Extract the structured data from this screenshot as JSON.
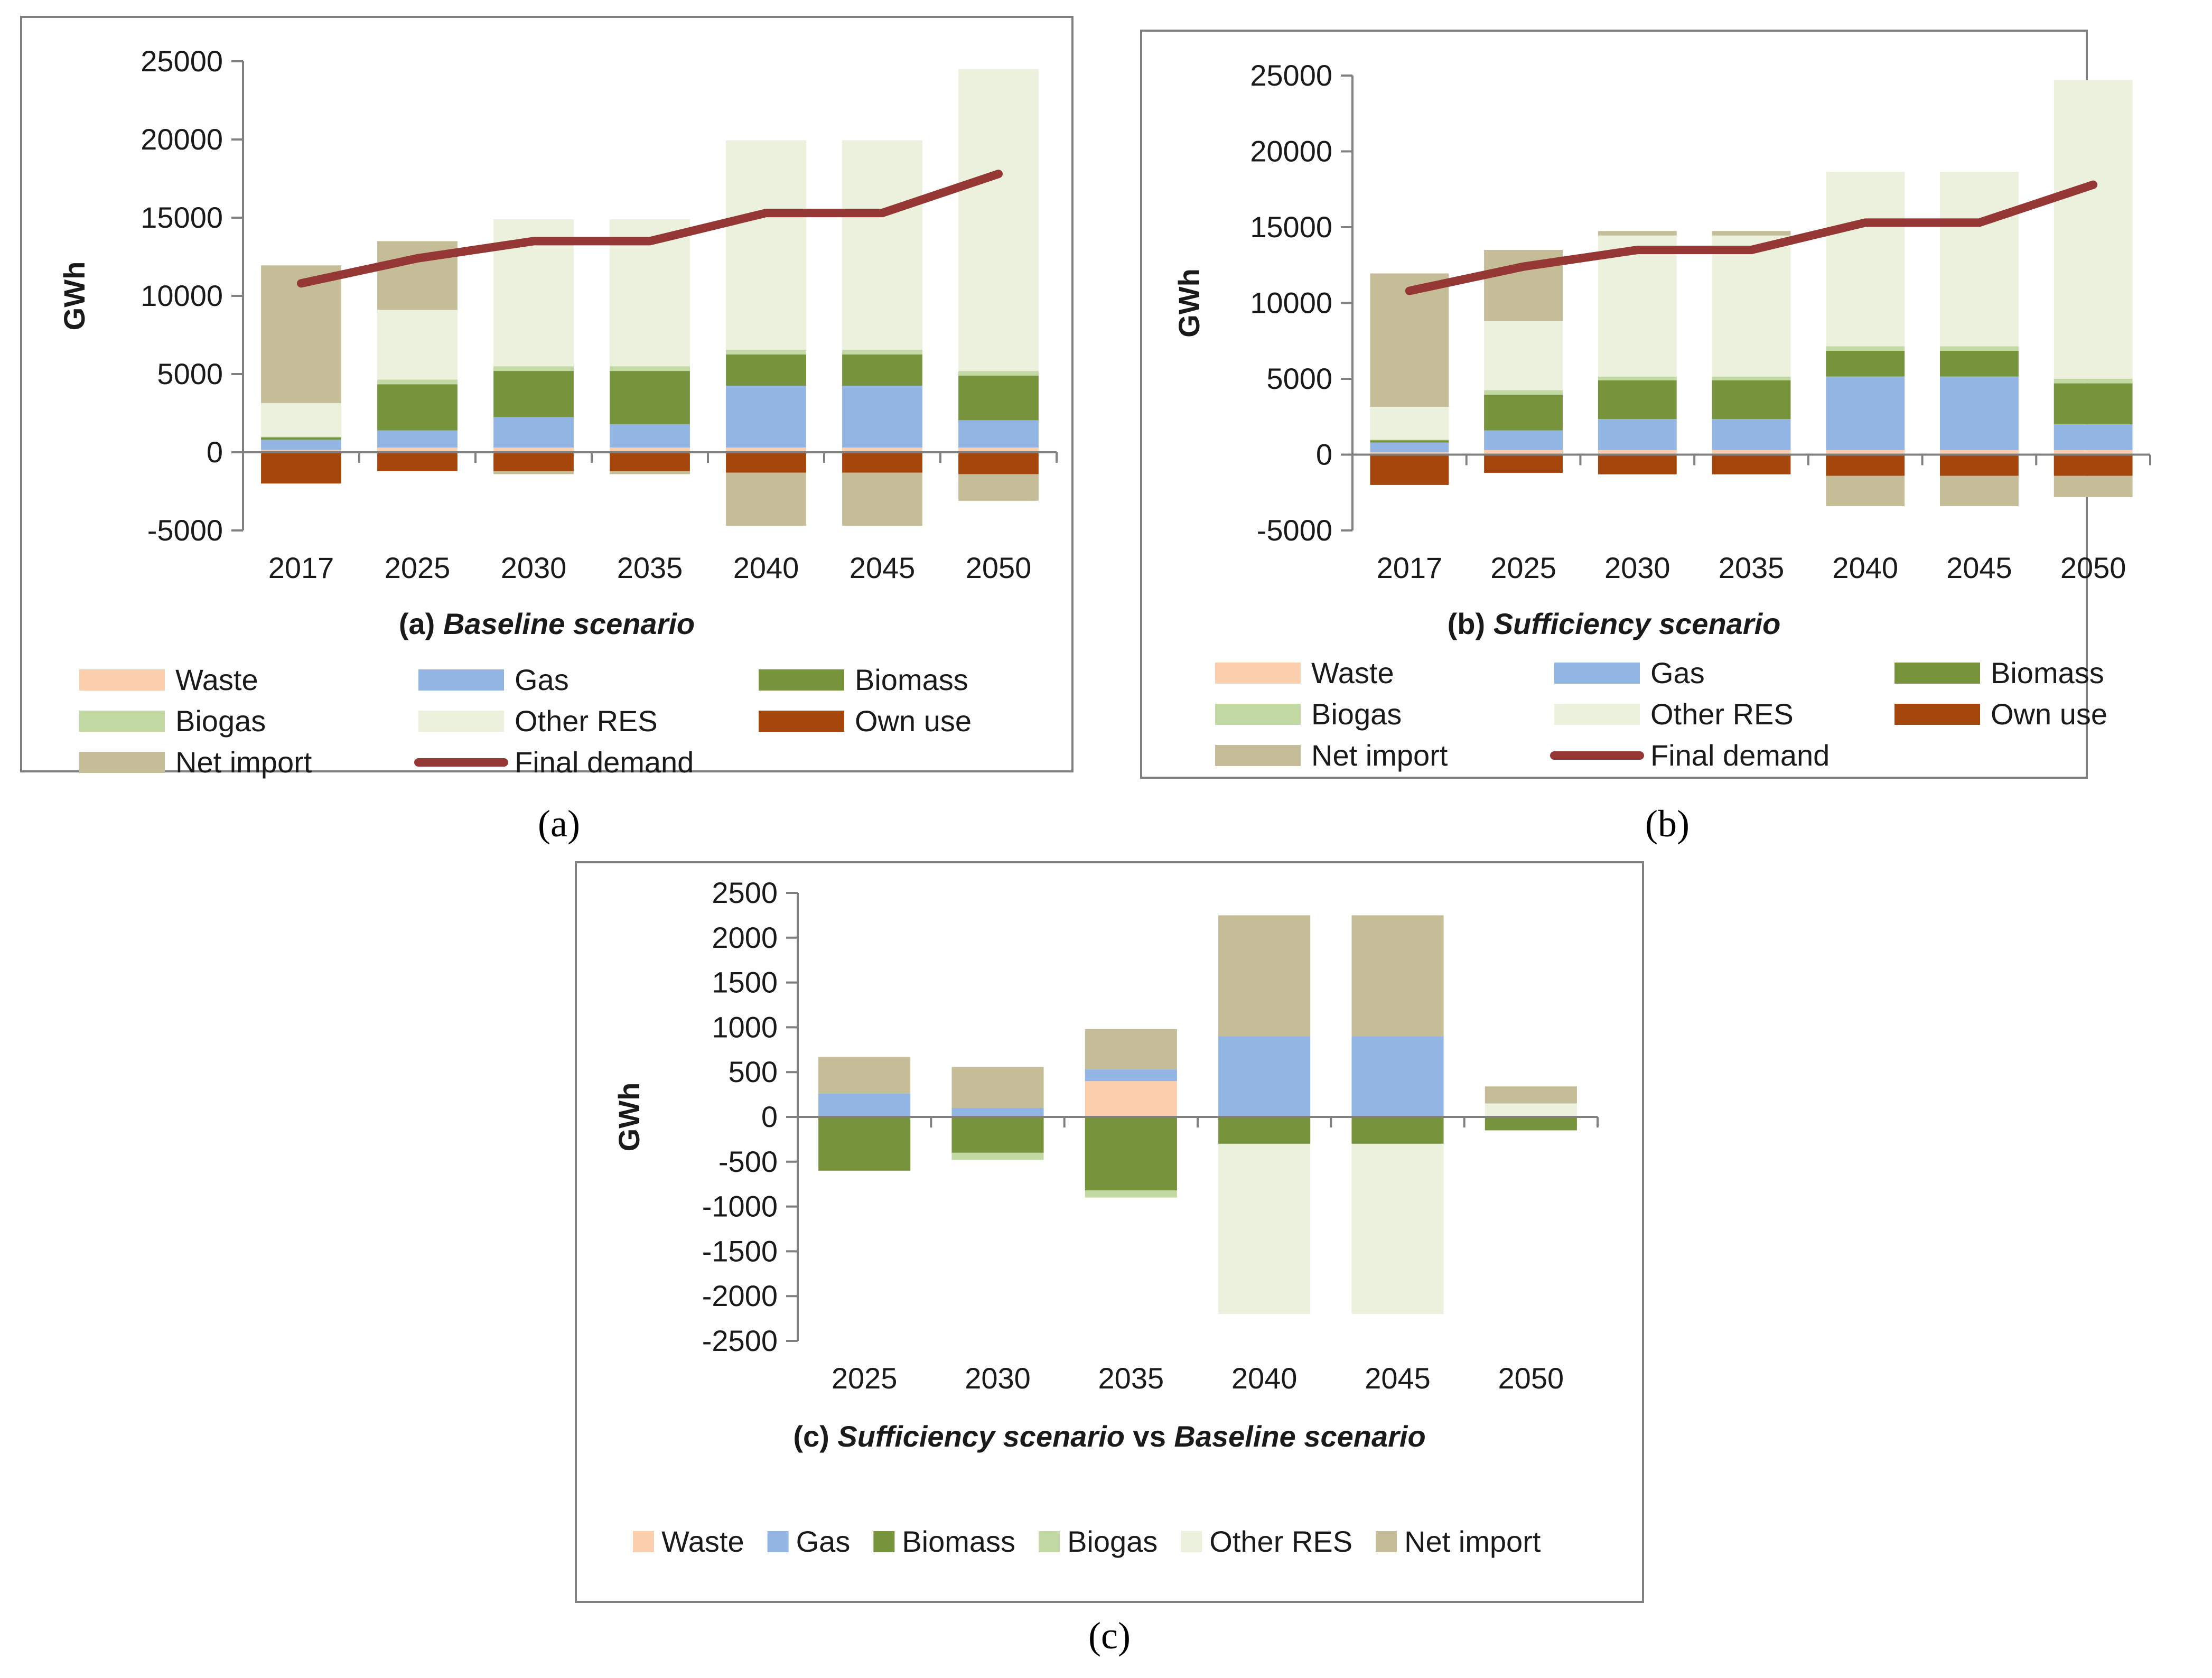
{
  "colors": {
    "Waste": "#fbcfae",
    "Gas": "#92b5e3",
    "Biomass": "#77933c",
    "Biogas": "#c3d9a3",
    "Other RES": "#ebf1dd",
    "Own use": "#a5470c",
    "Net import": "#c4bd97",
    "Final demand": "#953735",
    "frame": "#7f7f7f",
    "axis": "#808080"
  },
  "chart_data": [
    {
      "id": "a",
      "type": "bar",
      "stacked": true,
      "panel_label": "(a)",
      "title_prefix": "(a) ",
      "title_italic": "Baseline scenario",
      "ylabel": "GWh",
      "ylim": [
        -5000,
        25000
      ],
      "yticks": [
        -5000,
        0,
        5000,
        10000,
        15000,
        20000,
        25000
      ],
      "categories": [
        "2017",
        "2025",
        "2030",
        "2035",
        "2040",
        "2045",
        "2050"
      ],
      "series": [
        {
          "name": "Waste",
          "values": [
            150,
            300,
            300,
            300,
            300,
            300,
            300
          ]
        },
        {
          "name": "Gas",
          "values": [
            650,
            1100,
            1950,
            1500,
            3950,
            3950,
            1750
          ]
        },
        {
          "name": "Biomass",
          "values": [
            150,
            2950,
            2950,
            3400,
            2000,
            2000,
            2850
          ]
        },
        {
          "name": "Biogas",
          "values": [
            50,
            300,
            300,
            300,
            300,
            300,
            300
          ]
        },
        {
          "name": "Other RES",
          "values": [
            2150,
            4450,
            9400,
            9400,
            13400,
            13400,
            19300
          ]
        },
        {
          "name": "Own use",
          "values": [
            -2000,
            -1200,
            -1200,
            -1200,
            -1300,
            -1300,
            -1400
          ]
        },
        {
          "name": "Net import",
          "values": [
            8800,
            4400,
            -200,
            -200,
            -3400,
            -3400,
            -1700
          ]
        }
      ],
      "line": {
        "name": "Final demand",
        "values": [
          10800,
          12400,
          13500,
          13500,
          15300,
          15300,
          17800
        ]
      },
      "legend": [
        "Waste",
        "Gas",
        "Biomass",
        "Biogas",
        "Other RES",
        "Own use",
        "Net import",
        "Final demand"
      ]
    },
    {
      "id": "b",
      "type": "bar",
      "stacked": true,
      "panel_label": "(b)",
      "title_prefix": "(b) ",
      "title_italic": "Sufficiency scenario",
      "ylabel": "GWh",
      "ylim": [
        -5000,
        25000
      ],
      "yticks": [
        -5000,
        0,
        5000,
        10000,
        15000,
        20000,
        25000
      ],
      "categories": [
        "2017",
        "2025",
        "2030",
        "2035",
        "2040",
        "2045",
        "2050"
      ],
      "series": [
        {
          "name": "Waste",
          "values": [
            150,
            300,
            300,
            300,
            300,
            300,
            300
          ]
        },
        {
          "name": "Gas",
          "values": [
            650,
            1300,
            2050,
            2050,
            4850,
            4850,
            1700
          ]
        },
        {
          "name": "Biomass",
          "values": [
            150,
            2350,
            2550,
            2550,
            1700,
            1700,
            2700
          ]
        },
        {
          "name": "Biogas",
          "values": [
            50,
            300,
            250,
            250,
            300,
            300,
            300
          ]
        },
        {
          "name": "Other RES",
          "values": [
            2150,
            4550,
            9300,
            9300,
            11500,
            11500,
            19700
          ]
        },
        {
          "name": "Own use",
          "values": [
            -2000,
            -1200,
            -1300,
            -1300,
            -1400,
            -1400,
            -1400
          ]
        },
        {
          "name": "Net import",
          "values": [
            8800,
            4700,
            300,
            300,
            -2000,
            -2000,
            -1400
          ]
        }
      ],
      "line": {
        "name": "Final demand",
        "values": [
          10800,
          12400,
          13500,
          13500,
          15300,
          15300,
          17800
        ]
      },
      "legend": [
        "Waste",
        "Gas",
        "Biomass",
        "Biogas",
        "Other RES",
        "Own use",
        "Net import",
        "Final demand"
      ]
    },
    {
      "id": "c",
      "type": "bar",
      "stacked": true,
      "panel_label": "(c)",
      "title_parts": [
        "(c) ",
        "Sufficiency scenario",
        " vs ",
        "Baseline scenario"
      ],
      "ylabel": "GWh",
      "ylim": [
        -2500,
        2500
      ],
      "yticks": [
        -2500,
        -2000,
        -1500,
        -1000,
        -500,
        0,
        500,
        1000,
        1500,
        2000,
        2500
      ],
      "categories": [
        "2025",
        "2030",
        "2035",
        "2040",
        "2045",
        "2050"
      ],
      "series": [
        {
          "name": "Waste",
          "values": [
            0,
            0,
            400,
            0,
            0,
            0
          ]
        },
        {
          "name": "Gas",
          "values": [
            260,
            100,
            130,
            900,
            900,
            0
          ]
        },
        {
          "name": "Biomass",
          "values": [
            -600,
            -400,
            -820,
            -300,
            -300,
            -150
          ]
        },
        {
          "name": "Biogas",
          "values": [
            0,
            -80,
            -80,
            0,
            0,
            0
          ]
        },
        {
          "name": "Other RES",
          "values": [
            0,
            0,
            0,
            -1900,
            -1900,
            150
          ]
        },
        {
          "name": "Net import",
          "values": [
            410,
            460,
            450,
            1350,
            1350,
            190
          ]
        }
      ],
      "legend": [
        "Waste",
        "Gas",
        "Biomass",
        "Biogas",
        "Other RES",
        "Net import"
      ]
    }
  ]
}
